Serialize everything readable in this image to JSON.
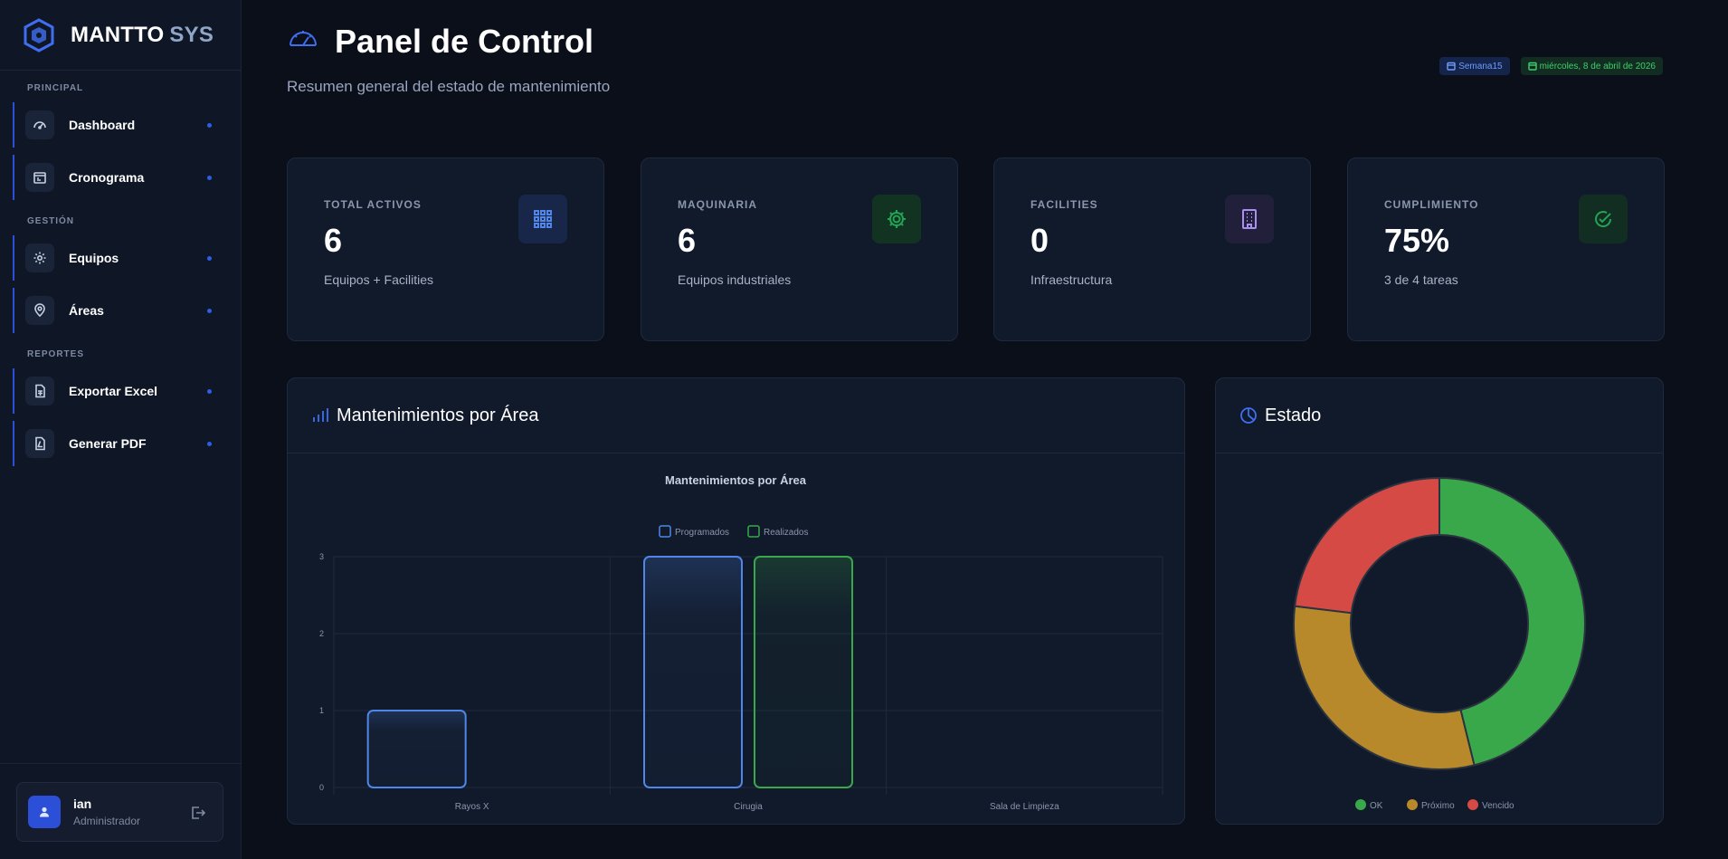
{
  "brand": {
    "name": "MANTTO",
    "suffix": "SYS"
  },
  "sidebar": {
    "sections": [
      {
        "title": "PRINCIPAL",
        "items": [
          {
            "label": "Dashboard",
            "icon": "gauge-icon"
          },
          {
            "label": "Cronograma",
            "icon": "calendar-icon"
          }
        ]
      },
      {
        "title": "GESTIÓN",
        "items": [
          {
            "label": "Equipos",
            "icon": "gear-icon"
          },
          {
            "label": "Áreas",
            "icon": "map-pin-icon"
          }
        ]
      },
      {
        "title": "REPORTES",
        "items": [
          {
            "label": "Exportar Excel",
            "icon": "spreadsheet-icon"
          },
          {
            "label": "Generar PDF",
            "icon": "pdf-icon"
          }
        ]
      }
    ],
    "user": {
      "name": "ian",
      "role": "Administrador"
    }
  },
  "header": {
    "title": "Panel de Control",
    "subtitle": "Resumen general del estado de mantenimiento",
    "week_badge": "Semana15",
    "date_badge": "miércoles, 8 de abril de 2026"
  },
  "stats": [
    {
      "label": "TOTAL ACTIVOS",
      "value": "6",
      "desc": "Equipos + Facilities",
      "icon": "grid-icon",
      "color": "#3f6ef0",
      "bg": "#18264a"
    },
    {
      "label": "MAQUINARIA",
      "value": "6",
      "desc": "Equipos industriales",
      "icon": "cog-icon",
      "color": "#22a454",
      "bg": "#123322"
    },
    {
      "label": "FACILITIES",
      "value": "0",
      "desc": "Infraestructura",
      "icon": "building-icon",
      "color": "#a98ff0",
      "bg": "#221f3a"
    },
    {
      "label": "CUMPLIMIENTO",
      "value": "75%",
      "desc": "3 de 4 tareas",
      "icon": "check-circle-icon",
      "color": "#22a454",
      "bg": "#122d22"
    }
  ],
  "bar_panel": {
    "title": "Mantenimientos por Área"
  },
  "pie_panel": {
    "title": "Estado"
  },
  "chart_data": [
    {
      "type": "bar",
      "title": "Mantenimientos por Área",
      "categories": [
        "Rayos X",
        "Cirugia",
        "Sala de Limpieza"
      ],
      "series": [
        {
          "name": "Programados",
          "values": [
            1,
            3,
            0
          ],
          "color": "#4f86e8"
        },
        {
          "name": "Realizados",
          "values": [
            0,
            3,
            0
          ],
          "color": "#38a84a"
        }
      ],
      "ylim": [
        0,
        3
      ],
      "yticks": [
        0,
        1,
        2,
        3
      ],
      "legend": "top",
      "grid": true
    },
    {
      "type": "pie",
      "labels": [
        "OK",
        "Próximo",
        "Vencido"
      ],
      "values": [
        3,
        2,
        1.5
      ],
      "colors": [
        "#38a84a",
        "#b8892a",
        "#d64a45"
      ],
      "legend": "bottom"
    }
  ]
}
